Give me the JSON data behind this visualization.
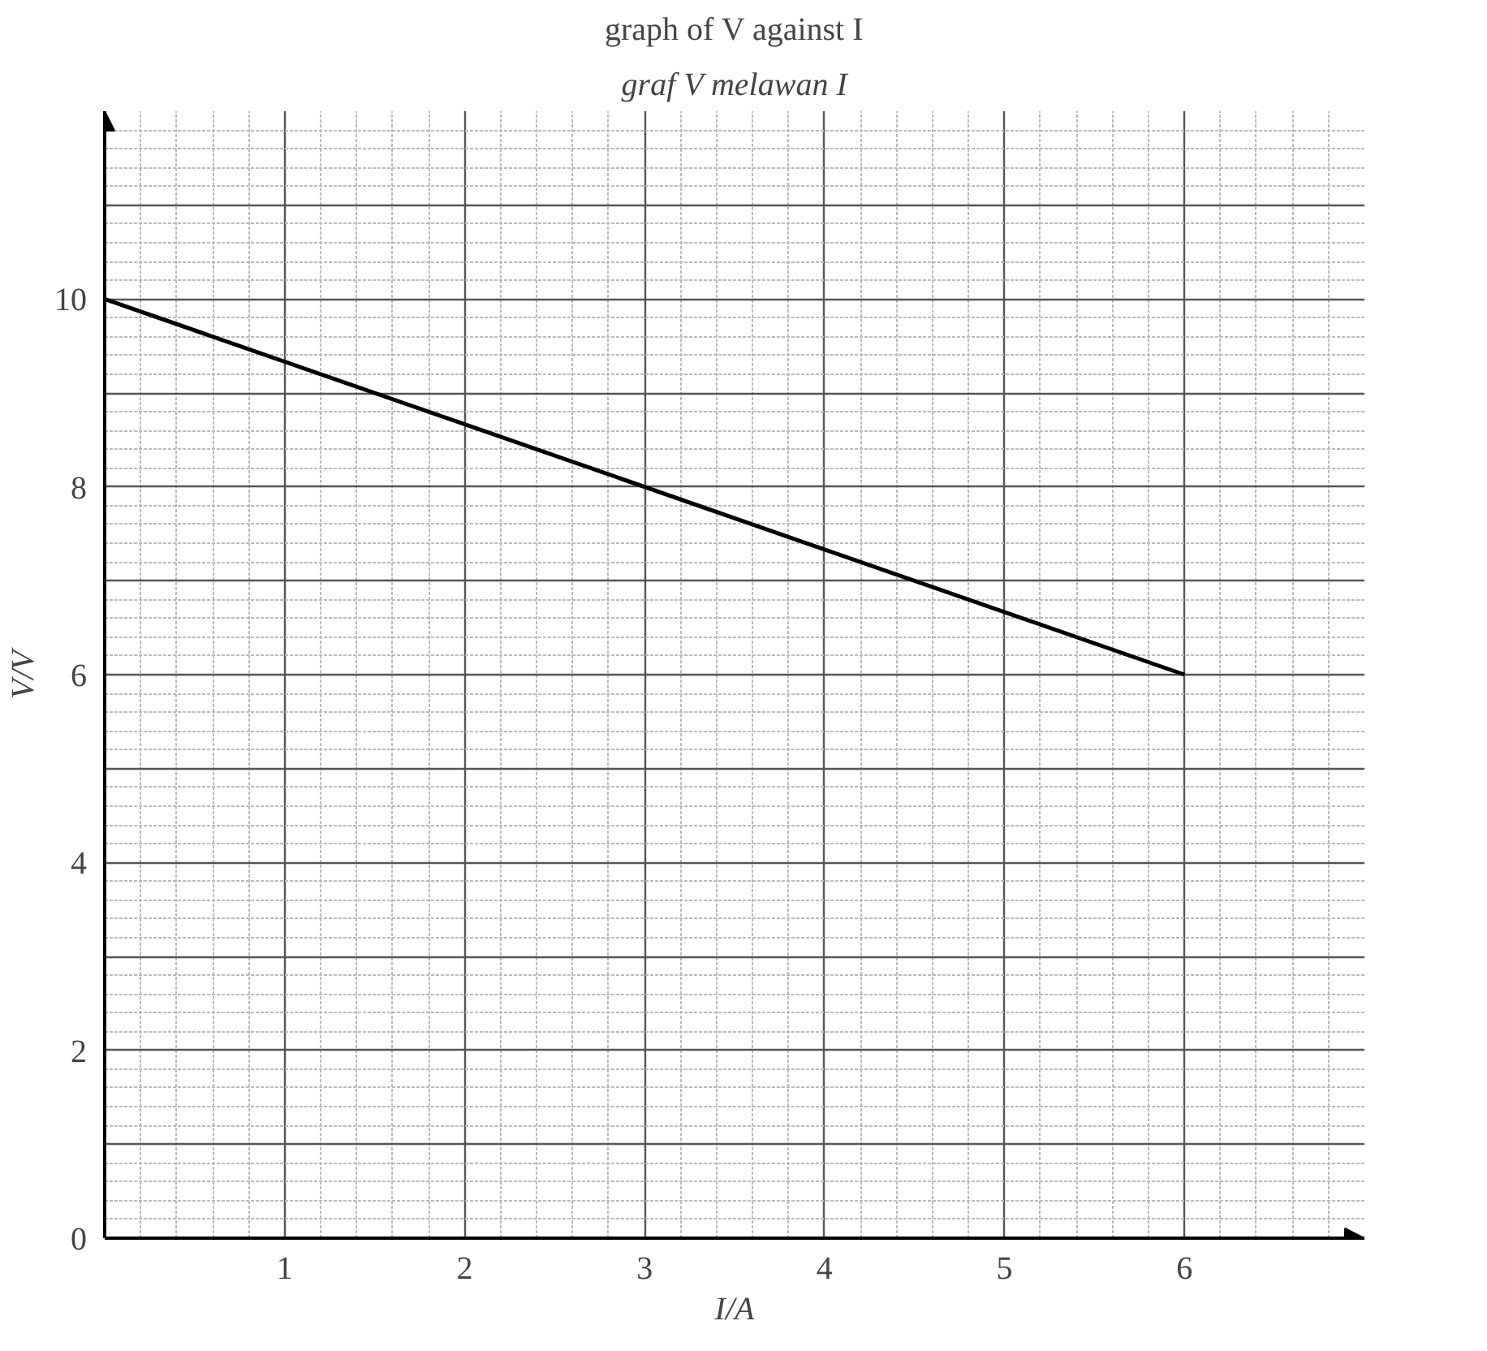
{
  "chart_data": {
    "type": "line",
    "title": "graph of V against I",
    "subtitle": "graf V melawan I",
    "xlabel": "I/A",
    "ylabel": "V/V",
    "x": [
      0,
      6
    ],
    "series": [
      {
        "color": "#000000",
        "values": [
          10,
          6
        ]
      }
    ],
    "xlim": [
      0,
      7
    ],
    "ylim": [
      0,
      12
    ],
    "xticks": [
      {
        "value": 0,
        "label": null
      },
      1,
      2,
      3,
      4,
      5,
      6
    ],
    "yticks": [
      0,
      2,
      4,
      6,
      8,
      10
    ],
    "grid": true,
    "marker": "none",
    "line_style": "solid"
  }
}
